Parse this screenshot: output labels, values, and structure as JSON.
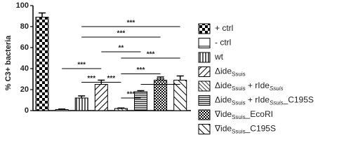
{
  "chart_data": {
    "type": "bar",
    "y_label": "% C3+ bacteria",
    "categories": [
      null,
      null,
      null,
      null,
      null,
      null,
      null,
      null
    ],
    "values": [
      89,
      1,
      12,
      25,
      2,
      18,
      29,
      29
    ],
    "errors": [
      4,
      0.5,
      2,
      4,
      0.5,
      1,
      3,
      4
    ],
    "patterns": [
      "checker",
      "hline",
      "vstripe",
      "diag-up",
      "diag-down",
      "hstripe",
      "grid",
      "diag-down-wide"
    ],
    "color": "#000000",
    "ylim": [
      0,
      100
    ],
    "yticks": [
      0,
      20,
      40,
      60,
      80,
      100
    ],
    "brackets": [
      {
        "label": "***",
        "y": 80,
        "from": 2,
        "to": 7
      },
      {
        "label": "***",
        "y": 70,
        "from": 2,
        "to": 6
      },
      {
        "label": "**",
        "y": 56,
        "from": 3,
        "to": 5
      },
      {
        "label": "***",
        "y": 50,
        "from": 4,
        "to": 7
      },
      {
        "label": "***",
        "y": 40,
        "from": 1,
        "to": 3
      },
      {
        "label": "***",
        "y": 35,
        "from": 4,
        "to": 6
      },
      {
        "label": "***",
        "y": 27,
        "from": 2,
        "to": 3
      },
      {
        "label": "***",
        "y": 27,
        "from": 3,
        "to": 4
      },
      {
        "label": "***",
        "y": 25,
        "from": 5,
        "to": 7
      },
      {
        "label": "***",
        "y": 12,
        "from": 4,
        "to": 5
      }
    ],
    "legend": [
      [
        {
          "text": "+ ctrl"
        }
      ],
      [
        {
          "text": "- ctrl"
        }
      ],
      [
        {
          "text": "wt"
        }
      ],
      [
        {
          "text": "Δide"
        },
        {
          "text": "Ssuis",
          "style": "sub"
        }
      ],
      [
        {
          "text": "Δide"
        },
        {
          "text": "Ssuis",
          "style": "sub"
        },
        {
          "text": " + rIde"
        },
        {
          "text": "Ssuis",
          "style": "sub-italic"
        }
      ],
      [
        {
          "text": "Δide"
        },
        {
          "text": "Ssuis",
          "style": "sub"
        },
        {
          "text": " + rIde"
        },
        {
          "text": "Ssuis",
          "style": "sub-italic"
        },
        {
          "text": "_C195S"
        }
      ],
      [
        {
          "text": "∇ide"
        },
        {
          "text": "Ssuis",
          "style": "sub"
        },
        {
          "text": "_EcoRI"
        }
      ],
      [
        {
          "text": "∇ide"
        },
        {
          "text": "Ssuis",
          "style": "sub"
        },
        {
          "text": "_C195S"
        }
      ]
    ]
  }
}
